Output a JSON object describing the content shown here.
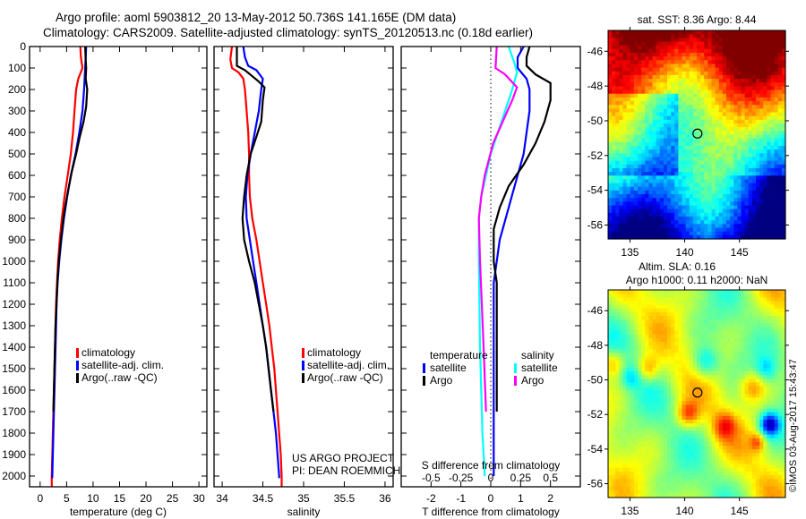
{
  "header": {
    "title_line1": "Argo profile: aoml 5903812_20 13-May-2012 50.736S 141.165E (DM data)",
    "title_line2": "Climatology: CARS2009. Satellite-adjusted climatology: synTS_20120513.nc (0.18d earlier)"
  },
  "colors": {
    "climatology": "#ff0000",
    "satellite": "#0000ff",
    "argo": "#000000",
    "salinity_satellite": "#00ffff",
    "salinity_argo": "#ff00ff"
  },
  "chart_data": [
    {
      "id": "temperature",
      "type": "line",
      "xlabel": "temperature (deg C)",
      "ylabel": "",
      "xlim": [
        -2,
        31.5
      ],
      "ylim": [
        0,
        2050
      ],
      "y_inverted": true,
      "xticks": [
        0,
        5,
        10,
        15,
        20,
        25,
        30
      ],
      "yticks": [
        0,
        100,
        200,
        300,
        400,
        500,
        600,
        700,
        800,
        900,
        1000,
        1100,
        1200,
        1300,
        1400,
        1500,
        1600,
        1700,
        1800,
        1900,
        2000
      ],
      "legend": {
        "placement": "center-left",
        "entries": [
          "climatology",
          "satellite-adj. clim.",
          "Argo(..raw -QC)"
        ]
      },
      "series": [
        {
          "name": "climatology",
          "color": "#ff0000",
          "points": [
            [
              7.6,
              0
            ],
            [
              7.7,
              50
            ],
            [
              8.0,
              100
            ],
            [
              7.2,
              150
            ],
            [
              6.8,
              200
            ],
            [
              6.5,
              300
            ],
            [
              6.2,
              400
            ],
            [
              5.8,
              500
            ],
            [
              5.2,
              600
            ],
            [
              4.6,
              700
            ],
            [
              4.1,
              800
            ],
            [
              3.7,
              900
            ],
            [
              3.4,
              1000
            ],
            [
              3.2,
              1100
            ],
            [
              3.0,
              1200
            ],
            [
              2.9,
              1300
            ],
            [
              2.8,
              1400
            ],
            [
              2.7,
              1500
            ],
            [
              2.6,
              1600
            ],
            [
              2.5,
              1700
            ],
            [
              2.4,
              1800
            ],
            [
              2.3,
              1900
            ],
            [
              2.2,
              2000
            ],
            [
              2.2,
              2050
            ]
          ]
        },
        {
          "name": "satellite-adj. clim.",
          "color": "#0000ff",
          "points": [
            [
              8.7,
              0
            ],
            [
              8.6,
              50
            ],
            [
              8.5,
              100
            ],
            [
              8.3,
              200
            ],
            [
              8.0,
              300
            ],
            [
              7.4,
              400
            ],
            [
              6.7,
              500
            ],
            [
              5.8,
              600
            ],
            [
              5.1,
              700
            ],
            [
              4.5,
              800
            ],
            [
              4.0,
              900
            ],
            [
              3.6,
              1000
            ],
            [
              3.3,
              1100
            ],
            [
              3.1,
              1200
            ],
            [
              3.0,
              1300
            ],
            [
              2.9,
              1400
            ],
            [
              2.8,
              1500
            ],
            [
              2.7,
              1600
            ],
            [
              2.6,
              1700
            ],
            [
              2.5,
              1800
            ],
            [
              2.4,
              1900
            ],
            [
              2.3,
              2000
            ],
            [
              2.3,
              2010
            ]
          ]
        },
        {
          "name": "Argo(..raw -QC)",
          "color": "#000000",
          "points": [
            [
              8.5,
              0
            ],
            [
              8.6,
              60
            ],
            [
              8.7,
              100
            ],
            [
              8.6,
              150
            ],
            [
              8.9,
              200
            ],
            [
              8.7,
              280
            ],
            [
              8.2,
              350
            ],
            [
              7.5,
              420
            ],
            [
              6.8,
              500
            ],
            [
              6.0,
              580
            ],
            [
              5.2,
              680
            ],
            [
              4.5,
              780
            ],
            [
              4.0,
              880
            ],
            [
              3.6,
              980
            ],
            [
              3.3,
              1080
            ],
            [
              3.1,
              1200
            ],
            [
              2.9,
              1300
            ],
            [
              2.8,
              1400
            ],
            [
              2.7,
              1500
            ],
            [
              2.6,
              1600
            ],
            [
              2.5,
              1700
            ]
          ]
        }
      ]
    },
    {
      "id": "salinity",
      "type": "line",
      "xlabel": "salinity",
      "ylabel": "",
      "xlim": [
        33.9,
        36.1
      ],
      "ylim": [
        0,
        2050
      ],
      "y_inverted": true,
      "xticks": [
        34,
        34.5,
        35,
        35.5,
        36
      ],
      "legend": {
        "placement": "center-right",
        "entries": [
          "climatology",
          "satellite-adj. clim.",
          "Argo(..raw -QC)"
        ]
      },
      "annotation": [
        "US ARGO PROJECT",
        "PI: DEAN ROEMMICH"
      ],
      "series": [
        {
          "name": "climatology",
          "color": "#ff0000",
          "points": [
            [
              34.12,
              0
            ],
            [
              34.1,
              60
            ],
            [
              34.12,
              100
            ],
            [
              34.2,
              120
            ],
            [
              34.26,
              150
            ],
            [
              34.28,
              200
            ],
            [
              34.3,
              300
            ],
            [
              34.32,
              400
            ],
            [
              34.33,
              500
            ],
            [
              34.33,
              600
            ],
            [
              34.34,
              700
            ],
            [
              34.37,
              800
            ],
            [
              34.42,
              900
            ],
            [
              34.46,
              1000
            ],
            [
              34.5,
              1100
            ],
            [
              34.54,
              1200
            ],
            [
              34.58,
              1300
            ],
            [
              34.61,
              1400
            ],
            [
              34.64,
              1500
            ],
            [
              34.66,
              1600
            ],
            [
              34.68,
              1700
            ],
            [
              34.7,
              1800
            ],
            [
              34.72,
              1900
            ],
            [
              34.73,
              2000
            ],
            [
              34.73,
              2050
            ]
          ]
        },
        {
          "name": "satellite-adj. clim.",
          "color": "#0000ff",
          "points": [
            [
              34.26,
              0
            ],
            [
              34.28,
              50
            ],
            [
              34.32,
              90
            ],
            [
              34.42,
              110
            ],
            [
              34.5,
              150
            ],
            [
              34.48,
              200
            ],
            [
              34.45,
              300
            ],
            [
              34.4,
              400
            ],
            [
              34.35,
              500
            ],
            [
              34.31,
              600
            ],
            [
              34.29,
              700
            ],
            [
              34.3,
              800
            ],
            [
              34.34,
              900
            ],
            [
              34.38,
              1000
            ],
            [
              34.42,
              1100
            ],
            [
              34.46,
              1200
            ],
            [
              34.5,
              1300
            ],
            [
              34.54,
              1400
            ],
            [
              34.57,
              1500
            ],
            [
              34.6,
              1600
            ],
            [
              34.63,
              1700
            ],
            [
              34.66,
              1800
            ],
            [
              34.68,
              1900
            ],
            [
              34.7,
              2000
            ],
            [
              34.7,
              2010
            ]
          ]
        },
        {
          "name": "Argo(..raw -QC)",
          "color": "#000000",
          "points": [
            [
              34.18,
              0
            ],
            [
              34.18,
              90
            ],
            [
              34.28,
              110
            ],
            [
              34.44,
              160
            ],
            [
              34.52,
              190
            ],
            [
              34.5,
              250
            ],
            [
              34.48,
              350
            ],
            [
              34.42,
              420
            ],
            [
              34.35,
              500
            ],
            [
              34.3,
              600
            ],
            [
              34.27,
              700
            ],
            [
              34.25,
              800
            ],
            [
              34.27,
              900
            ],
            [
              34.33,
              1000
            ],
            [
              34.4,
              1100
            ],
            [
              34.45,
              1200
            ],
            [
              34.5,
              1300
            ],
            [
              34.54,
              1400
            ],
            [
              34.57,
              1500
            ],
            [
              34.6,
              1600
            ],
            [
              34.63,
              1700
            ]
          ]
        }
      ]
    },
    {
      "id": "difference",
      "type": "line",
      "xlabel": "T difference from climatology",
      "xlabel_secondary": "S difference from climatology",
      "xlim": [
        -3,
        3
      ],
      "xlim_secondary": [
        -0.75,
        0.75
      ],
      "ylim": [
        0,
        2050
      ],
      "y_inverted": true,
      "xticks": [
        -2,
        -1,
        0,
        1,
        2
      ],
      "xticks_secondary": [
        -0.5,
        -0.25,
        0,
        0.25,
        0.5
      ],
      "zero_line": "dotted",
      "legend": {
        "placement": "lower-center",
        "groups": [
          {
            "heading": "temperature",
            "entries": [
              "satellite",
              "Argo"
            ]
          },
          {
            "heading": "salinity",
            "entries": [
              "satellite",
              "Argo"
            ]
          }
        ]
      },
      "series": [
        {
          "name": "temperature satellite",
          "color": "#0000ff",
          "points": [
            [
              1.1,
              0
            ],
            [
              0.9,
              50
            ],
            [
              0.9,
              100
            ],
            [
              1.2,
              150
            ],
            [
              1.3,
              200
            ],
            [
              1.3,
              300
            ],
            [
              1.2,
              400
            ],
            [
              1.1,
              500
            ],
            [
              0.9,
              600
            ],
            [
              0.7,
              700
            ],
            [
              0.5,
              800
            ],
            [
              0.3,
              900
            ],
            [
              0.2,
              1000
            ],
            [
              0.1,
              1100
            ],
            [
              0.1,
              1400
            ],
            [
              0.1,
              2000
            ]
          ]
        },
        {
          "name": "temperature Argo",
          "color": "#000000",
          "points": [
            [
              1.3,
              0
            ],
            [
              1.2,
              50
            ],
            [
              1.2,
              90
            ],
            [
              1.5,
              130
            ],
            [
              2.0,
              170
            ],
            [
              2.0,
              250
            ],
            [
              1.8,
              350
            ],
            [
              1.5,
              450
            ],
            [
              1.1,
              550
            ],
            [
              0.6,
              650
            ],
            [
              0.3,
              750
            ],
            [
              0.1,
              850
            ],
            [
              0.1,
              1000
            ],
            [
              0.2,
              1100
            ],
            [
              0.2,
              1700
            ]
          ]
        },
        {
          "name": "salinity satellite",
          "color": "#00ffff",
          "points": [
            [
              0.15,
              0
            ],
            [
              0.2,
              80
            ],
            [
              0.22,
              120
            ],
            [
              0.18,
              200
            ],
            [
              0.12,
              300
            ],
            [
              0.06,
              400
            ],
            [
              0.0,
              500
            ],
            [
              -0.04,
              600
            ],
            [
              -0.08,
              700
            ],
            [
              -0.1,
              800
            ],
            [
              -0.1,
              1000
            ],
            [
              -0.09,
              1400
            ],
            [
              -0.07,
              1800
            ],
            [
              -0.05,
              2000
            ]
          ]
        },
        {
          "name": "salinity Argo",
          "color": "#ff00ff",
          "points": [
            [
              0.05,
              0
            ],
            [
              0.04,
              100
            ],
            [
              0.12,
              130
            ],
            [
              0.22,
              190
            ],
            [
              0.18,
              250
            ],
            [
              0.1,
              350
            ],
            [
              0.02,
              450
            ],
            [
              -0.05,
              600
            ],
            [
              -0.08,
              700
            ],
            [
              -0.1,
              800
            ],
            [
              -0.09,
              1000
            ],
            [
              -0.06,
              1400
            ],
            [
              -0.04,
              1700
            ]
          ]
        }
      ]
    },
    {
      "id": "sst-map",
      "type": "heatmap",
      "title": "sat. SST: 8.36 Argo: 8.44",
      "xlim": [
        133,
        149.2
      ],
      "ylim": [
        -56.8,
        -44.8
      ],
      "xticks": [
        135,
        140,
        145
      ],
      "yticks": [
        -46,
        -48,
        -50,
        -52,
        -54,
        -56
      ],
      "marker": {
        "lon": 141.165,
        "lat": -50.736
      },
      "colormap": "jet"
    },
    {
      "id": "sla-map",
      "type": "heatmap",
      "title": "Altim. SLA: 0.16",
      "subtitle": "Argo h1000: 0.11 h2000: NaN",
      "xlim": [
        133,
        149.2
      ],
      "ylim": [
        -56.8,
        -44.8
      ],
      "xticks": [
        135,
        140,
        145
      ],
      "yticks": [
        -46,
        -48,
        -50,
        -52,
        -54,
        -56
      ],
      "marker": {
        "lon": 141.165,
        "lat": -50.736
      },
      "colormap": "jet"
    }
  ],
  "footer": {
    "credit": "©IMOS 03-Aug-2017 15:43:47"
  }
}
